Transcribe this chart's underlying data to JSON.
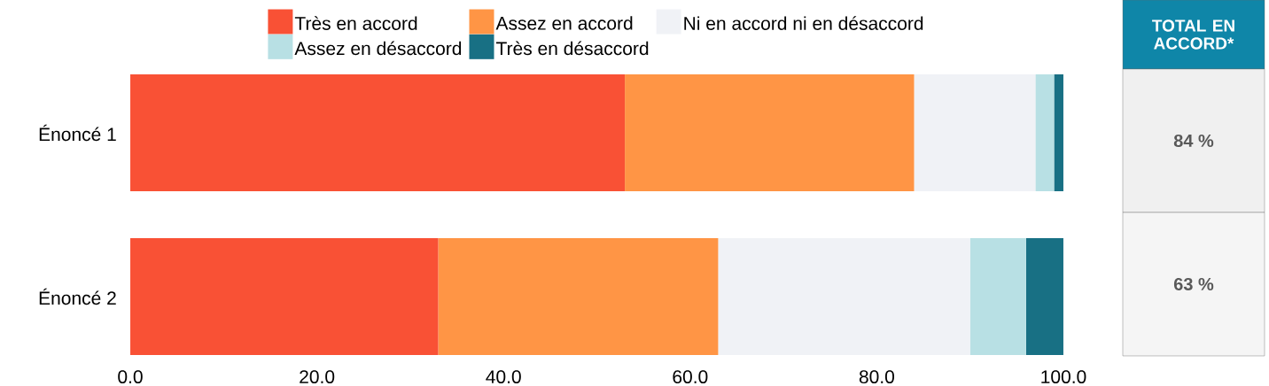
{
  "chart_data": [
    {
      "type": "bar",
      "orientation": "horizontal",
      "stacked": true,
      "categories": [
        "Énoncé 1",
        "Énoncé 2"
      ],
      "series": [
        {
          "name": "Très en accord",
          "color": "#f95135",
          "values": [
            53,
            33
          ]
        },
        {
          "name": "Assez en accord",
          "color": "#ff9545",
          "values": [
            31,
            30
          ]
        },
        {
          "name": "Ni en accord ni en désaccord",
          "color": "#f0f2f6",
          "values": [
            13,
            27
          ]
        },
        {
          "name": "Assez en désaccord",
          "color": "#b8e0e4",
          "values": [
            2,
            6
          ]
        },
        {
          "name": "Très en désaccord",
          "color": "#187084",
          "values": [
            1,
            4
          ]
        }
      ],
      "xlim": [
        0,
        100
      ],
      "xticks": [
        {
          "value": 0,
          "label": "0.0"
        },
        {
          "value": 20,
          "label": "20.0"
        },
        {
          "value": 40,
          "label": "40.0"
        },
        {
          "value": 60,
          "label": "60.0"
        },
        {
          "value": 80,
          "label": "80.0"
        },
        {
          "value": 100,
          "label": "100.0"
        }
      ],
      "legend": "top"
    },
    {
      "type": "other",
      "title": "TOTAL EN ACCORD*",
      "annotations": [
        "84 %",
        "63 %"
      ]
    }
  ]
}
